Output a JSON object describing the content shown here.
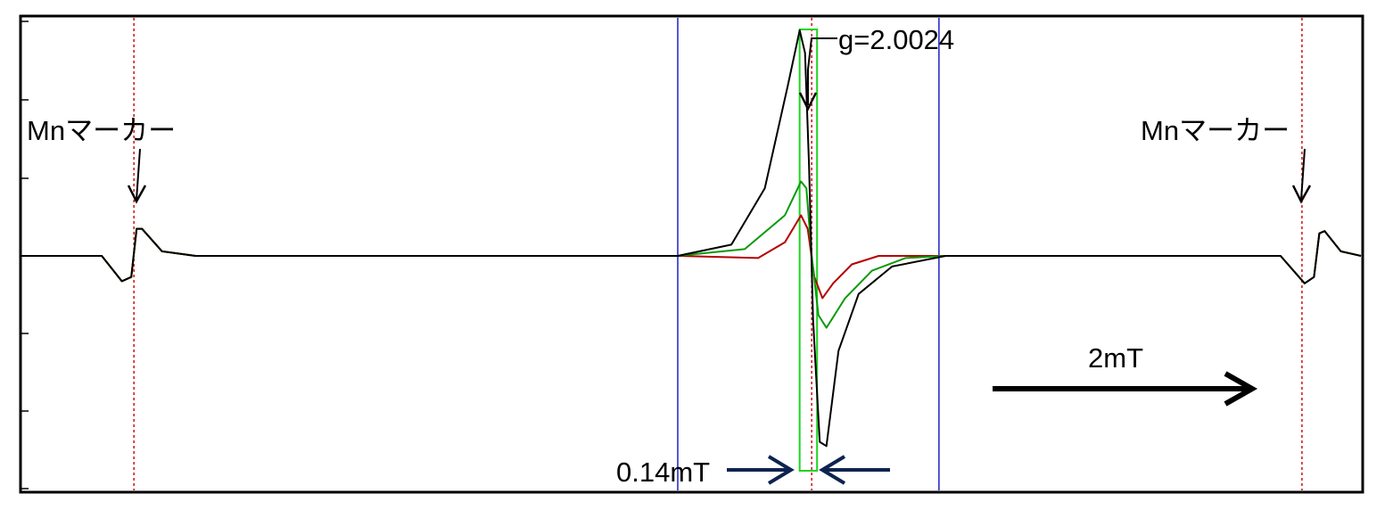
{
  "chart_data": {
    "type": "line",
    "title": "",
    "xlabel": "",
    "ylabel": "",
    "x_range": [
      0,
      100
    ],
    "y_range": [
      -1,
      1
    ],
    "grid": false,
    "legend": "none",
    "colors": {
      "black": "#000000",
      "green": "#0a9a0a",
      "red": "#b40000",
      "marker_line": "#d01010",
      "window_line": "#2020c8",
      "box": "#1fd41f",
      "arrow_blue": "#0d2350"
    },
    "series": [
      {
        "color": "black",
        "points": [
          [
            0,
            0
          ],
          [
            6,
            0
          ],
          [
            7.5,
            -0.12
          ],
          [
            8.2,
            -0.1
          ],
          [
            8.6,
            0.12
          ],
          [
            9,
            0.12
          ],
          [
            10.5,
            0.02
          ],
          [
            13,
            0
          ],
          [
            49,
            0
          ],
          [
            53,
            0.05
          ],
          [
            55.5,
            0.3
          ],
          [
            57.2,
            0.75
          ],
          [
            58.1,
            1.0
          ],
          [
            58.5,
            0.9
          ],
          [
            58.8,
            0.4
          ],
          [
            59.1,
            -0.3
          ],
          [
            59.6,
            -0.88
          ],
          [
            60.1,
            -0.9
          ],
          [
            61,
            -0.45
          ],
          [
            62.5,
            -0.18
          ],
          [
            65,
            -0.05
          ],
          [
            69,
            0
          ],
          [
            94,
            0
          ],
          [
            95.8,
            -0.13
          ],
          [
            96.5,
            -0.1
          ],
          [
            96.9,
            0.1
          ],
          [
            97.3,
            0.11
          ],
          [
            98.5,
            0.02
          ],
          [
            100,
            0
          ]
        ]
      },
      {
        "color": "green",
        "points": [
          [
            0,
            0
          ],
          [
            6,
            0
          ],
          [
            7.5,
            -0.12
          ],
          [
            8.2,
            -0.1
          ],
          [
            8.6,
            0.12
          ],
          [
            9,
            0.12
          ],
          [
            10.5,
            0.02
          ],
          [
            13,
            0
          ],
          [
            49,
            0
          ],
          [
            54,
            0.03
          ],
          [
            57,
            0.18
          ],
          [
            58.2,
            0.33
          ],
          [
            58.6,
            0.3
          ],
          [
            59,
            0
          ],
          [
            59.5,
            -0.28
          ],
          [
            60.1,
            -0.34
          ],
          [
            61.5,
            -0.2
          ],
          [
            63.5,
            -0.07
          ],
          [
            66,
            -0.01
          ],
          [
            69,
            0
          ],
          [
            94,
            0
          ],
          [
            95.8,
            -0.13
          ],
          [
            96.5,
            -0.1
          ],
          [
            96.9,
            0.1
          ],
          [
            97.3,
            0.11
          ],
          [
            98.5,
            0.02
          ],
          [
            100,
            0
          ]
        ]
      },
      {
        "color": "red",
        "points": [
          [
            0,
            0
          ],
          [
            6,
            0
          ],
          [
            7.5,
            -0.12
          ],
          [
            8.2,
            -0.1
          ],
          [
            8.6,
            0.12
          ],
          [
            9,
            0.12
          ],
          [
            10.5,
            0.02
          ],
          [
            13,
            0
          ],
          [
            49,
            0
          ],
          [
            55,
            -0.01
          ],
          [
            57,
            0.06
          ],
          [
            58.2,
            0.18
          ],
          [
            58.7,
            0.12
          ],
          [
            59.2,
            -0.1
          ],
          [
            59.8,
            -0.2
          ],
          [
            60.6,
            -0.13
          ],
          [
            62,
            -0.04
          ],
          [
            64,
            0
          ],
          [
            69,
            0
          ],
          [
            94,
            0
          ],
          [
            95.8,
            -0.13
          ],
          [
            96.5,
            -0.1
          ],
          [
            96.9,
            0.1
          ],
          [
            97.3,
            0.11
          ],
          [
            98.5,
            0.02
          ],
          [
            100,
            0
          ]
        ]
      }
    ],
    "reference_lines": {
      "mn_markers_x": [
        8.4,
        95.6
      ],
      "window_x": [
        49,
        68.5
      ],
      "center_x": 59
    },
    "highlight_box_x": [
      58.1,
      59.4
    ],
    "annotations": {
      "g_value": "g=2.0024",
      "mn_marker_left": "Mnマーカー",
      "mn_marker_right": "Mnマーカー",
      "linewidth": "0.14mT",
      "scale": "2mT"
    }
  }
}
